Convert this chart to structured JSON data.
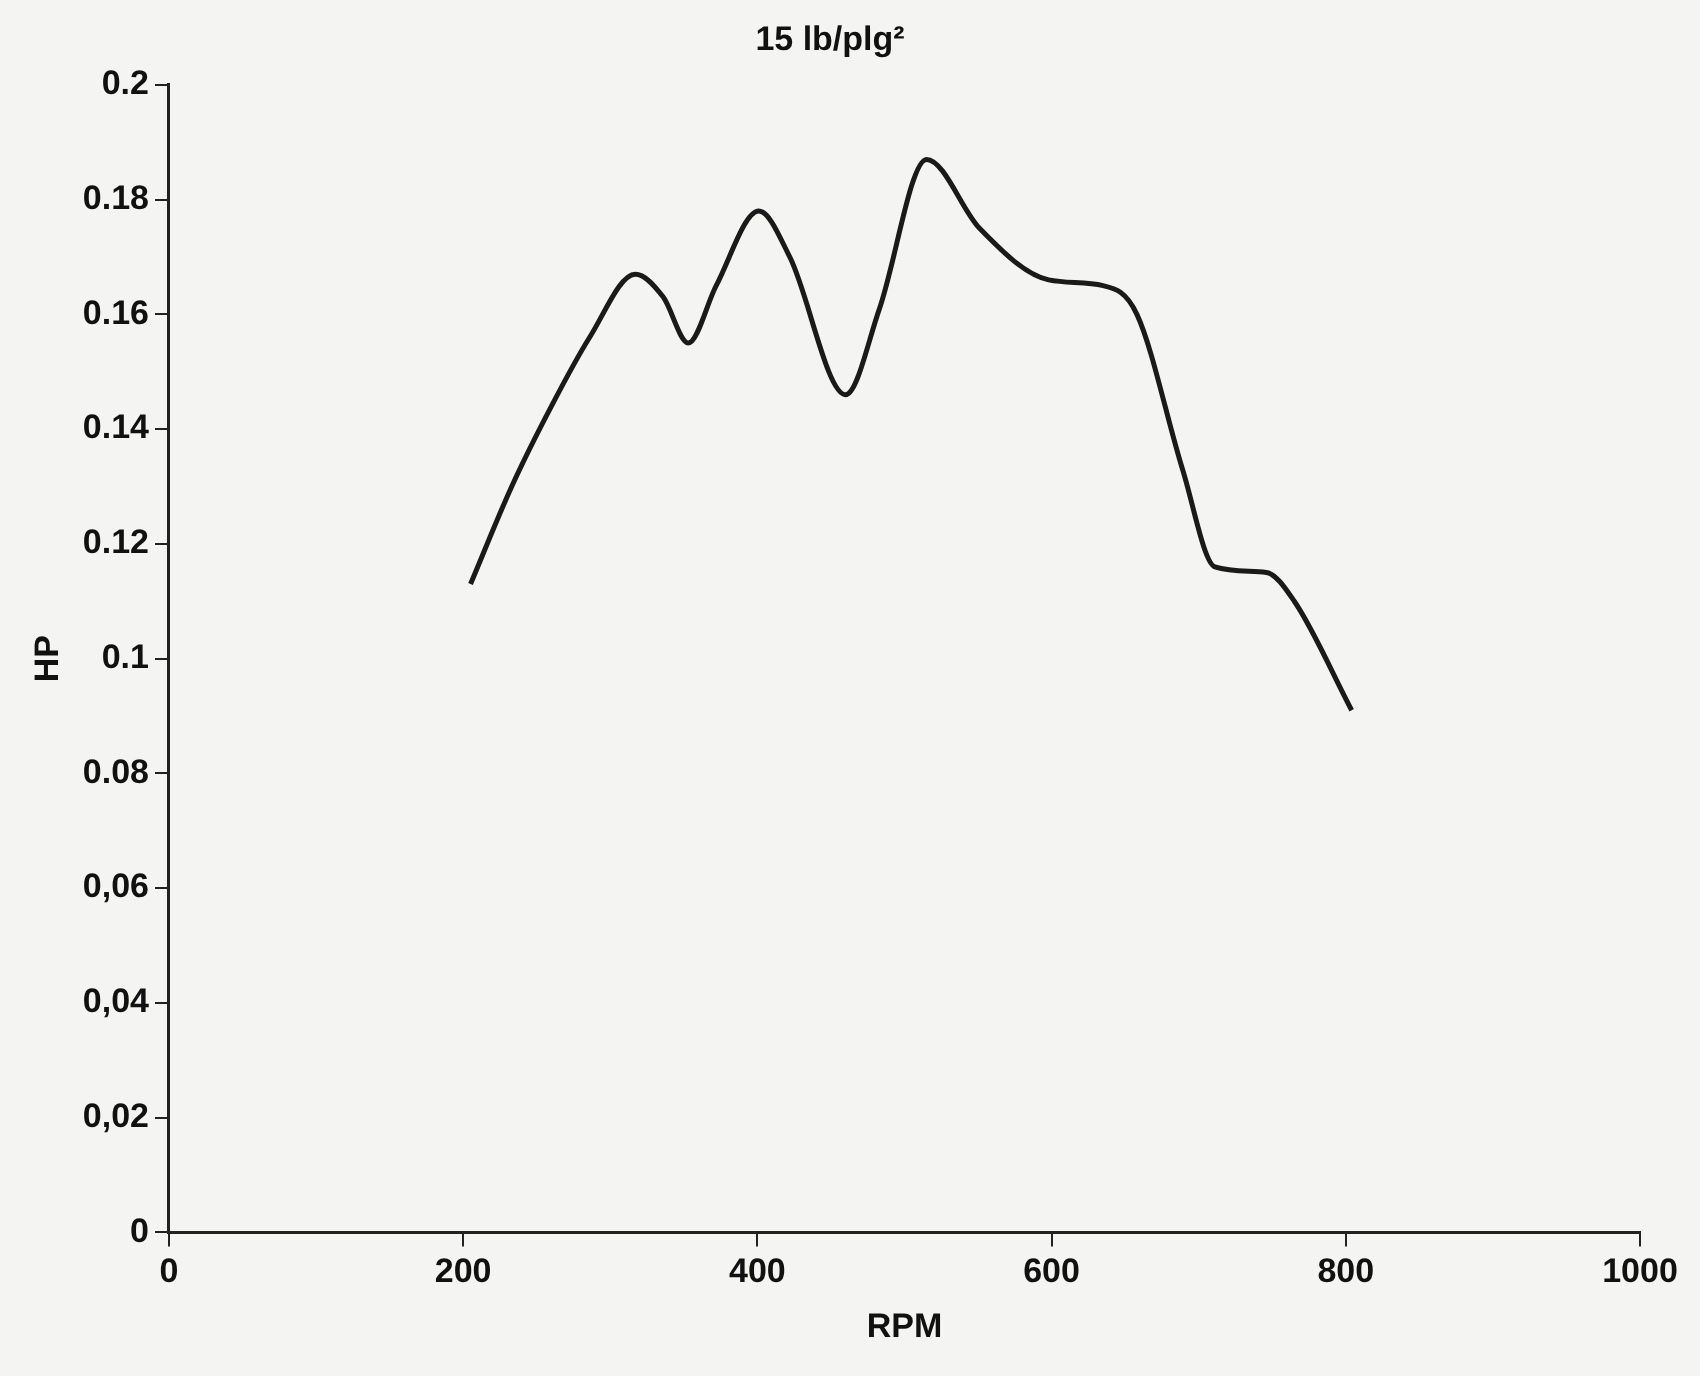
{
  "chart_data": {
    "type": "line",
    "title": "15 lb/plg²",
    "xlabel": "RPM",
    "ylabel": "HP",
    "xlim": [
      0,
      1000
    ],
    "xticks": [
      0,
      200,
      400,
      600,
      800,
      1000
    ],
    "ylim": [
      0,
      0.2
    ],
    "yticks": [
      {
        "value": 0,
        "label": "0"
      },
      {
        "value": 0.02,
        "label": "0,02"
      },
      {
        "value": 0.04,
        "label": "0,04"
      },
      {
        "value": 0.06,
        "label": "0,06"
      },
      {
        "value": 0.08,
        "label": "0.08"
      },
      {
        "value": 0.1,
        "label": "0.1"
      },
      {
        "value": 0.12,
        "label": "0.12"
      },
      {
        "value": 0.14,
        "label": "0.14"
      },
      {
        "value": 0.16,
        "label": "0.16"
      },
      {
        "value": 0.18,
        "label": "0.18"
      },
      {
        "value": 0.2,
        "label": "0.2"
      }
    ],
    "grid": false,
    "legend": false,
    "marker": "none",
    "line_style": "solid",
    "series": [
      {
        "color": "#1a1a1a",
        "x": [
          205,
          233,
          260,
          286,
          317,
          336,
          353,
          372,
          401,
          422,
          460,
          483,
          515,
          551,
          598,
          635,
          658,
          689,
          711,
          746,
          765,
          804
        ],
        "values": [
          0.113,
          0.13,
          0.144,
          0.156,
          0.167,
          0.163,
          0.155,
          0.165,
          0.178,
          0.17,
          0.146,
          0.161,
          0.187,
          0.175,
          0.166,
          0.165,
          0.16,
          0.133,
          0.116,
          0.115,
          0.11,
          0.091
        ]
      }
    ]
  }
}
